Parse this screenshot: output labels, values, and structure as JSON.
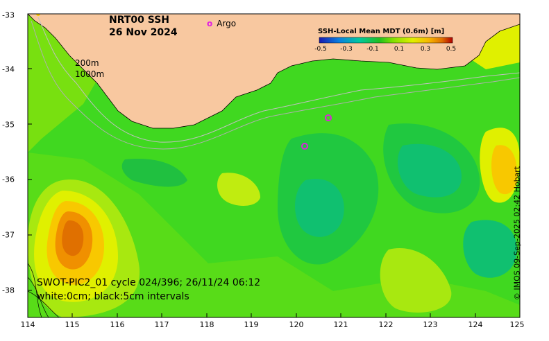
{
  "header": {
    "title_line1": "NRT00 SSH",
    "title_line2": "26 Nov 2024"
  },
  "legend": {
    "argo_marker": "o",
    "argo_label": "Argo"
  },
  "colorbar": {
    "title": "SSH-Local Mean MDT (0.6m) [m]",
    "ticks": [
      "-0.5",
      "-0.3",
      "-0.1",
      "0.1",
      "0.3",
      "0.5"
    ],
    "colors": [
      "#1a1ab0",
      "#0a80e0",
      "#00c8a0",
      "#20c020",
      "#80e000",
      "#e0f000",
      "#f8b800",
      "#e07000",
      "#b00000"
    ]
  },
  "depth_labels": {
    "line1": "200m",
    "line2": "1000m"
  },
  "caption": {
    "line1": "SWOT-PIC2_01 cycle 024/396; 26/11/24 06:12",
    "line2": "white:0cm; black:5cm intervals"
  },
  "credit": "© IMOS 09-Sep-2025 02:42 Hobart",
  "axes": {
    "x_ticks": [
      "114",
      "115",
      "116",
      "117",
      "118",
      "119",
      "120",
      "121",
      "122",
      "123",
      "124",
      "125"
    ],
    "y_ticks": [
      "-33",
      "-34",
      "-35",
      "-36",
      "-37",
      "-38"
    ]
  },
  "colors": {
    "land": "#f8c8a0",
    "sea_base": "#40d820",
    "argo": "#e020e0"
  }
}
